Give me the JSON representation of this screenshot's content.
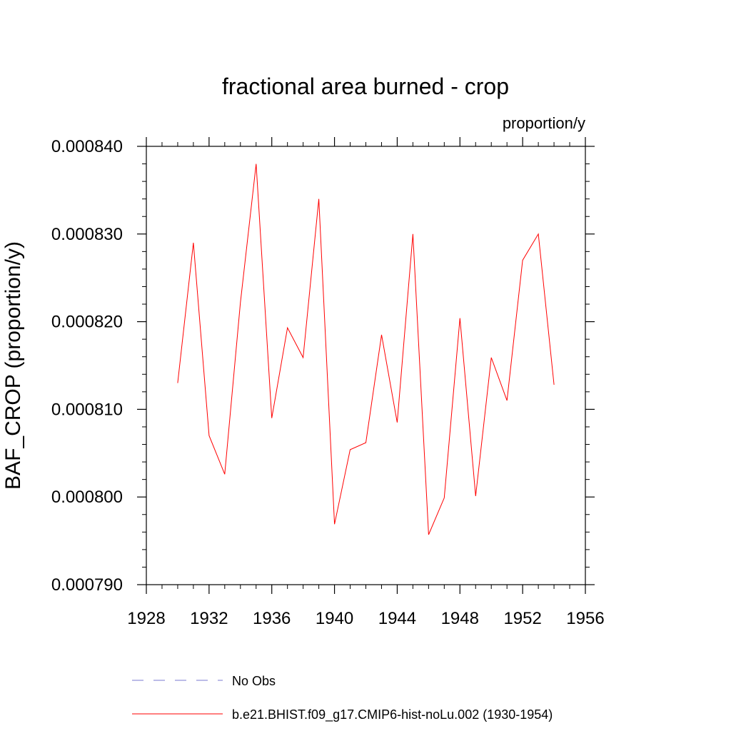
{
  "chart_data": {
    "type": "line",
    "title": "fractional area burned - crop",
    "units": "proportion/y",
    "xlabel": "",
    "ylabel": "BAF_CROP  (proportion/y)",
    "xlim": [
      1928,
      1956
    ],
    "ylim": [
      0.00079,
      0.00084
    ],
    "x_ticks": [
      1928,
      1932,
      1936,
      1940,
      1944,
      1948,
      1952,
      1956
    ],
    "x_tick_labels": [
      "1928",
      "1932",
      "1936",
      "1940",
      "1944",
      "1948",
      "1952",
      "1956"
    ],
    "y_ticks": [
      0.00079,
      0.0008,
      0.00081,
      0.00082,
      0.00083,
      0.00084
    ],
    "y_tick_labels": [
      "0.000790",
      "0.000800",
      "0.000810",
      "0.000820",
      "0.000830",
      "0.000840"
    ],
    "grid": false,
    "legend_position": "bottom",
    "series": [
      {
        "name": "b.e21.BHIST.f09_g17.CMIP6-hist-noLu.002 (1930-1954)",
        "color": "#ff0000",
        "style": "solid",
        "x": [
          1930,
          1931,
          1932,
          1933,
          1934,
          1935,
          1936,
          1937,
          1938,
          1939,
          1940,
          1941,
          1942,
          1943,
          1944,
          1945,
          1946,
          1947,
          1948,
          1949,
          1950,
          1951,
          1952,
          1953,
          1954
        ],
        "values": [
          0.000813,
          0.000829,
          0.000807,
          0.0008026,
          0.0008222,
          0.000838,
          0.000809,
          0.0008193,
          0.0008159,
          0.000834,
          0.0007969,
          0.0008054,
          0.0008062,
          0.0008185,
          0.0008085,
          0.00083,
          0.0007957,
          0.0007999,
          0.0008204,
          0.0008001,
          0.0008159,
          0.000811,
          0.000827,
          0.00083,
          0.0008128
        ]
      }
    ],
    "legend": [
      {
        "label": "No Obs",
        "color": "#7a7ad0",
        "style": "dashed"
      },
      {
        "label": "b.e21.BHIST.f09_g17.CMIP6-hist-noLu.002 (1930-1954)",
        "color": "#ff0000",
        "style": "solid"
      }
    ]
  }
}
